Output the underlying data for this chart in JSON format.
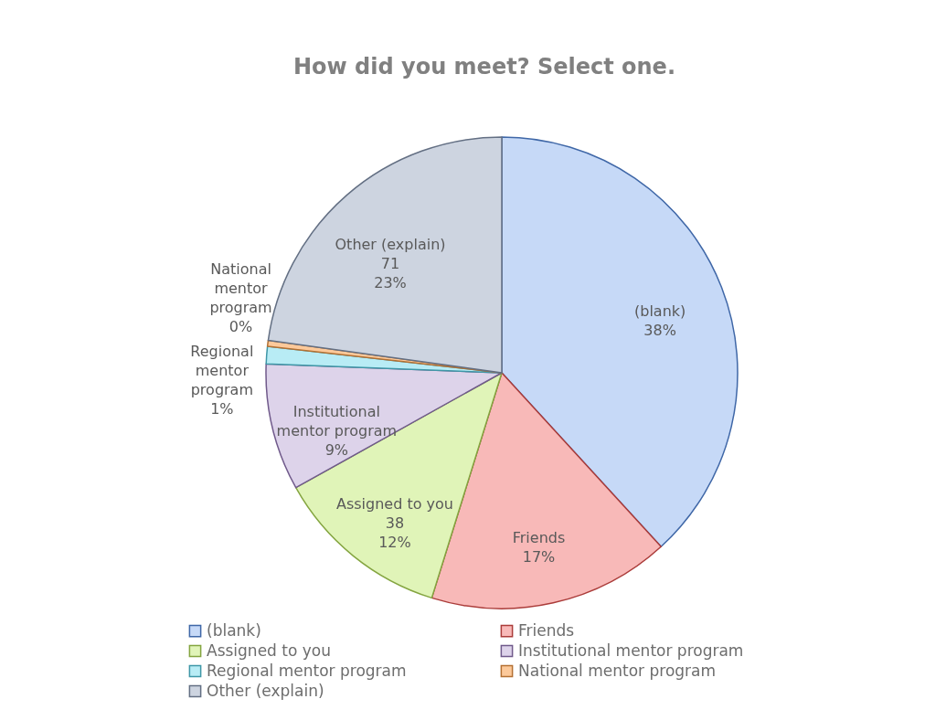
{
  "chart_data": {
    "type": "pie",
    "title": "How did you meet? Select one.",
    "categories": [
      "(blank)",
      "Friends",
      "Assigned to you",
      "Institutional mentor program",
      "Regional mentor program",
      "National mentor program",
      "Other (explain)"
    ],
    "values": [
      38.2,
      16.6,
      12.1,
      8.7,
      1.2,
      0.4,
      22.8
    ],
    "colors": [
      "#c6d9f7",
      "#f8b9b8",
      "#e0f4b8",
      "#ddd3ea",
      "#b8ecf5",
      "#fcc99a",
      "#cdd4e0"
    ],
    "value_labels": [
      "38%",
      "17%",
      "38\n12%",
      "9%",
      "1%",
      "0%",
      "71\n23%"
    ],
    "legend": "bottom"
  }
}
